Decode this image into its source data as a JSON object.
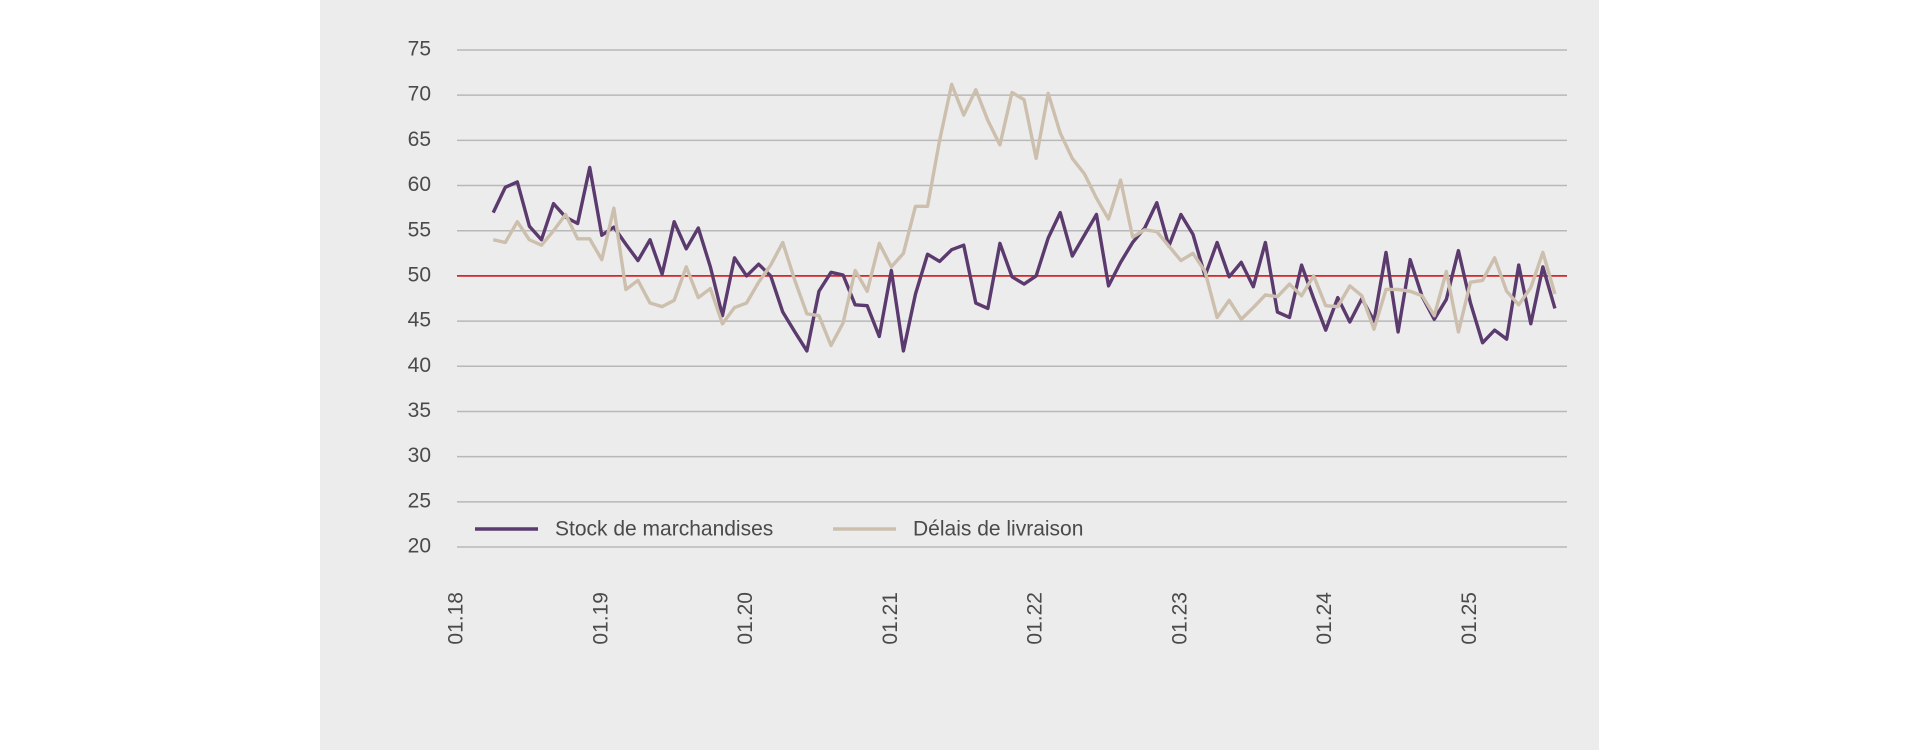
{
  "chart_data": {
    "type": "line",
    "categories": [
      "01.18",
      null,
      null,
      null,
      null,
      null,
      null,
      null,
      null,
      null,
      null,
      null,
      "01.19",
      null,
      null,
      null,
      null,
      null,
      null,
      null,
      null,
      null,
      null,
      null,
      "01.20",
      null,
      null,
      null,
      null,
      null,
      null,
      null,
      null,
      null,
      null,
      null,
      "01.21",
      null,
      null,
      null,
      null,
      null,
      null,
      null,
      null,
      null,
      null,
      null,
      "01.22",
      null,
      null,
      null,
      null,
      null,
      null,
      null,
      null,
      null,
      null,
      null,
      "01.23",
      null,
      null,
      null,
      null,
      null,
      null,
      null,
      null,
      null,
      null,
      null,
      "01.24",
      null,
      null,
      null,
      null,
      null,
      null,
      null,
      null,
      null,
      null,
      null,
      "01.25",
      null,
      null,
      null,
      null,
      null,
      null,
      null
    ],
    "series": [
      {
        "name": "Stock de marchandises",
        "color": "#5b3a6e",
        "values": [
          null,
          null,
          null,
          57,
          59.8,
          60.4,
          55.5,
          54,
          58,
          56.5,
          55.8,
          62,
          54.5,
          55.4,
          53.5,
          51.7,
          54,
          50.2,
          56,
          53,
          55.3,
          51,
          45.6,
          52,
          50,
          51.3,
          50,
          46,
          43.8,
          41.7,
          48.3,
          50.4,
          50.1,
          46.8,
          46.7,
          43.3,
          50.6,
          41.7,
          48,
          52.4,
          51.6,
          52.9,
          53.4,
          47,
          46.4,
          53.6,
          49.9,
          49.1,
          50,
          54.2,
          57,
          52.2,
          54.5,
          56.8,
          48.9,
          51.5,
          53.7,
          55.3,
          58.1,
          53.3,
          56.8,
          54.6,
          50,
          53.7,
          49.9,
          51.5,
          48.8,
          53.7,
          46,
          45.4,
          51.2,
          47.5,
          44,
          47.6,
          44.9,
          47.5,
          45,
          52.6,
          43.8,
          51.8,
          47.7,
          45.2,
          47.4,
          52.8,
          47,
          42.6,
          44,
          43,
          51.2,
          44.7,
          51,
          46.4
        ]
      },
      {
        "name": "Délais de livraison",
        "color": "#cdbfad",
        "values": [
          null,
          null,
          null,
          54,
          53.7,
          56,
          54,
          53.4,
          55,
          56.8,
          54.1,
          54.1,
          51.8,
          57.5,
          48.5,
          49.5,
          47,
          46.6,
          47.3,
          51,
          47.6,
          48.6,
          44.7,
          46.5,
          47,
          49.3,
          51.2,
          53.7,
          49.5,
          45.8,
          45.6,
          42.3,
          44.8,
          50.6,
          48.3,
          53.6,
          51,
          52.5,
          57.7,
          57.7,
          65,
          71.2,
          67.8,
          70.6,
          67.2,
          64.5,
          70.3,
          69.5,
          63,
          70.2,
          65.8,
          63,
          61.3,
          58.6,
          56.3,
          60.6,
          54.3,
          55.1,
          54.9,
          53.3,
          51.7,
          52.5,
          50.5,
          45.4,
          47.3,
          45.2,
          46.5,
          47.9,
          47.7,
          49.1,
          47.8,
          50,
          46.7,
          46.6,
          48.9,
          47.8,
          44.1,
          48.5,
          48.5,
          48.3,
          47.8,
          45.6,
          50.5,
          43.8,
          49.3,
          49.5,
          52,
          48.3,
          46.8,
          48.7,
          52.6,
          48
        ]
      }
    ],
    "ylim": [
      20,
      75
    ],
    "yticks": [
      20,
      25,
      30,
      35,
      40,
      45,
      50,
      55,
      60,
      65,
      70,
      75
    ],
    "grid": true,
    "reference_line": {
      "value": 50,
      "color": "#d9262c"
    },
    "legend": "lower left"
  }
}
